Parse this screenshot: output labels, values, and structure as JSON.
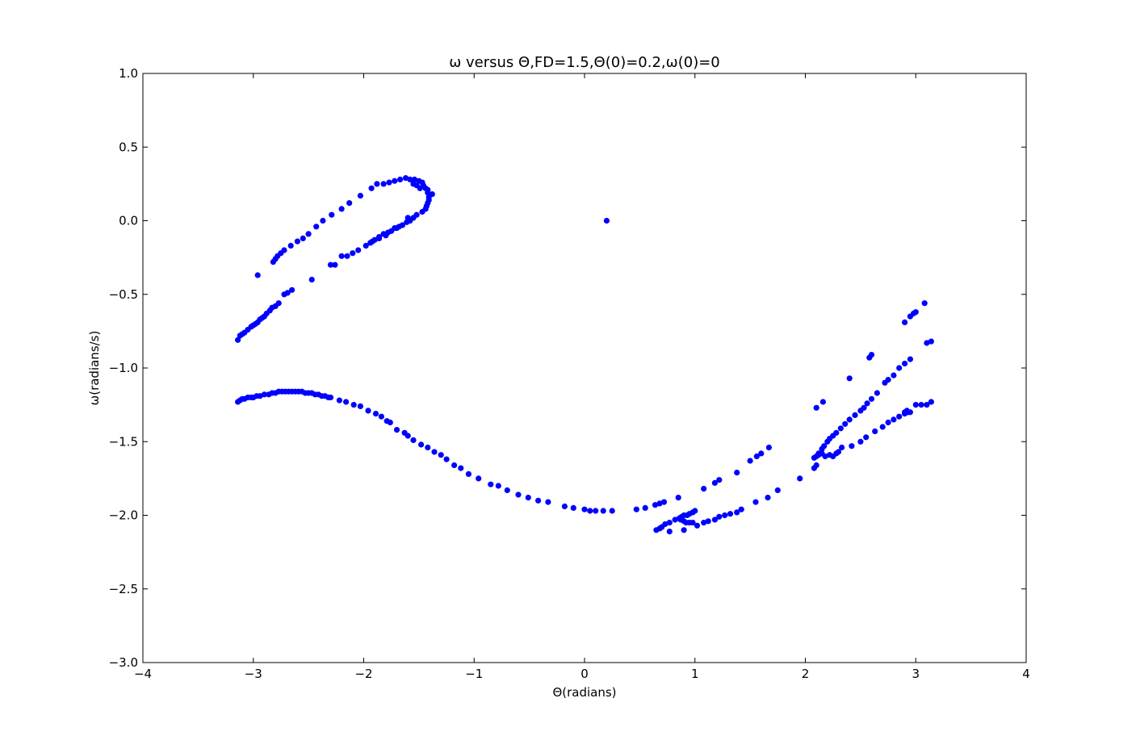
{
  "chart_data": {
    "type": "scatter",
    "title": "ω versus Θ,FD=1.5,Θ(0)=0.2,ω(0)=0",
    "xlabel": "Θ(radians)",
    "ylabel": "ω(radians/s)",
    "xlim": [
      -4,
      4
    ],
    "ylim": [
      -3,
      1
    ],
    "xticks": [
      -4,
      -3,
      -2,
      -1,
      0,
      1,
      2,
      3,
      4
    ],
    "xtick_labels": [
      "−4",
      "−3",
      "−2",
      "−1",
      "0",
      "1",
      "2",
      "3",
      "4"
    ],
    "yticks": [
      -3.0,
      -2.5,
      -2.0,
      -1.5,
      -1.0,
      -0.5,
      0.0,
      0.5,
      1.0
    ],
    "ytick_labels": [
      "−3.0",
      "−2.5",
      "−2.0",
      "−1.5",
      "−1.0",
      "−0.5",
      "0.0",
      "0.5",
      "1.0"
    ],
    "grid": false,
    "marker_color": "#0000ff",
    "series": [
      {
        "points": [
          [
            0.2,
            0.0
          ],
          [
            -3.14,
            -0.81
          ],
          [
            -3.12,
            -0.78
          ],
          [
            -3.1,
            -0.77
          ],
          [
            -3.08,
            -0.76
          ],
          [
            -3.05,
            -0.74
          ],
          [
            -3.02,
            -0.72
          ],
          [
            -3.0,
            -0.71
          ],
          [
            -2.98,
            -0.7
          ],
          [
            -2.96,
            -0.69
          ],
          [
            -2.94,
            -0.67
          ],
          [
            -2.92,
            -0.66
          ],
          [
            -2.9,
            -0.65
          ],
          [
            -2.88,
            -0.63
          ],
          [
            -2.85,
            -0.61
          ],
          [
            -2.83,
            -0.59
          ],
          [
            -2.8,
            -0.58
          ],
          [
            -2.77,
            -0.56
          ],
          [
            -2.72,
            -0.5
          ],
          [
            -2.69,
            -0.49
          ],
          [
            -2.65,
            -0.47
          ],
          [
            -2.47,
            -0.4
          ],
          [
            -2.3,
            -0.3
          ],
          [
            -2.26,
            -0.3
          ],
          [
            -2.96,
            -0.37
          ],
          [
            -2.82,
            -0.28
          ],
          [
            -2.8,
            -0.26
          ],
          [
            -2.78,
            -0.24
          ],
          [
            -2.75,
            -0.22
          ],
          [
            -2.72,
            -0.2
          ],
          [
            -2.66,
            -0.17
          ],
          [
            -2.6,
            -0.14
          ],
          [
            -2.55,
            -0.12
          ],
          [
            -2.5,
            -0.09
          ],
          [
            -2.43,
            -0.04
          ],
          [
            -2.37,
            0.0
          ],
          [
            -2.29,
            0.04
          ],
          [
            -2.2,
            0.08
          ],
          [
            -2.13,
            0.12
          ],
          [
            -2.03,
            0.17
          ],
          [
            -1.93,
            0.22
          ],
          [
            -2.2,
            -0.24
          ],
          [
            -2.15,
            -0.24
          ],
          [
            -2.1,
            -0.22
          ],
          [
            -2.05,
            -0.2
          ],
          [
            -1.98,
            -0.17
          ],
          [
            -1.94,
            -0.15
          ],
          [
            -1.9,
            -0.13
          ],
          [
            -1.86,
            -0.11
          ],
          [
            -1.82,
            -0.09
          ],
          [
            -1.78,
            -0.08
          ],
          [
            -1.75,
            -0.07
          ],
          [
            -1.72,
            -0.05
          ],
          [
            -1.68,
            -0.04
          ],
          [
            -1.65,
            -0.03
          ],
          [
            -1.61,
            -0.01
          ],
          [
            -1.58,
            0.0
          ],
          [
            -1.55,
            0.02
          ],
          [
            -1.52,
            0.04
          ],
          [
            -1.47,
            0.06
          ],
          [
            -1.44,
            0.08
          ],
          [
            -1.43,
            0.1
          ],
          [
            -1.42,
            0.12
          ],
          [
            -1.41,
            0.14
          ],
          [
            -1.41,
            0.16
          ],
          [
            -1.38,
            0.18
          ],
          [
            -1.42,
            0.19
          ],
          [
            -1.42,
            0.21
          ],
          [
            -1.44,
            0.22
          ],
          [
            -1.46,
            0.24
          ],
          [
            -1.47,
            0.26
          ],
          [
            -1.5,
            0.27
          ],
          [
            -1.54,
            0.28
          ],
          [
            -1.58,
            0.28
          ],
          [
            -1.62,
            0.29
          ],
          [
            -1.67,
            0.28
          ],
          [
            -1.72,
            0.27
          ],
          [
            -1.77,
            0.26
          ],
          [
            -1.82,
            0.25
          ],
          [
            -1.88,
            0.25
          ],
          [
            -1.92,
            -0.14
          ],
          [
            -1.86,
            -0.12
          ],
          [
            -1.8,
            -0.1
          ],
          [
            -1.7,
            -0.05
          ],
          [
            -1.6,
            0.02
          ],
          [
            -1.55,
            0.25
          ],
          [
            -1.52,
            0.24
          ],
          [
            -1.49,
            0.22
          ],
          [
            -3.14,
            -1.23
          ],
          [
            -3.12,
            -1.22
          ],
          [
            -3.1,
            -1.21
          ],
          [
            -3.08,
            -1.21
          ],
          [
            -3.05,
            -1.2
          ],
          [
            -3.02,
            -1.2
          ],
          [
            -3.0,
            -1.2
          ],
          [
            -2.97,
            -1.19
          ],
          [
            -2.94,
            -1.19
          ],
          [
            -2.9,
            -1.18
          ],
          [
            -2.86,
            -1.18
          ],
          [
            -2.83,
            -1.17
          ],
          [
            -2.8,
            -1.17
          ],
          [
            -2.77,
            -1.16
          ],
          [
            -2.74,
            -1.16
          ],
          [
            -2.71,
            -1.16
          ],
          [
            -2.68,
            -1.16
          ],
          [
            -2.65,
            -1.16
          ],
          [
            -2.62,
            -1.16
          ],
          [
            -2.59,
            -1.16
          ],
          [
            -2.56,
            -1.16
          ],
          [
            -2.53,
            -1.17
          ],
          [
            -2.5,
            -1.17
          ],
          [
            -2.47,
            -1.17
          ],
          [
            -2.44,
            -1.18
          ],
          [
            -2.41,
            -1.18
          ],
          [
            -2.38,
            -1.19
          ],
          [
            -2.35,
            -1.19
          ],
          [
            -2.32,
            -1.2
          ],
          [
            -2.3,
            -1.2
          ],
          [
            -2.22,
            -1.22
          ],
          [
            -2.16,
            -1.23
          ],
          [
            -2.09,
            -1.25
          ],
          [
            -2.03,
            -1.26
          ],
          [
            -1.96,
            -1.29
          ],
          [
            -1.89,
            -1.31
          ],
          [
            -1.84,
            -1.33
          ],
          [
            -1.79,
            -1.36
          ],
          [
            -1.76,
            -1.37
          ],
          [
            -1.7,
            -1.42
          ],
          [
            -1.63,
            -1.44
          ],
          [
            -1.6,
            -1.46
          ],
          [
            -1.55,
            -1.49
          ],
          [
            -1.48,
            -1.52
          ],
          [
            -1.42,
            -1.54
          ],
          [
            -1.36,
            -1.57
          ],
          [
            -1.3,
            -1.59
          ],
          [
            -1.25,
            -1.62
          ],
          [
            -1.18,
            -1.66
          ],
          [
            -1.12,
            -1.68
          ],
          [
            -1.05,
            -1.72
          ],
          [
            -0.96,
            -1.75
          ],
          [
            -0.85,
            -1.79
          ],
          [
            -0.78,
            -1.8
          ],
          [
            -0.7,
            -1.83
          ],
          [
            -0.6,
            -1.86
          ],
          [
            -0.51,
            -1.88
          ],
          [
            -0.42,
            -1.9
          ],
          [
            -0.33,
            -1.91
          ],
          [
            -0.18,
            -1.94
          ],
          [
            -0.1,
            -1.95
          ],
          [
            0.0,
            -1.96
          ],
          [
            0.05,
            -1.97
          ],
          [
            0.1,
            -1.97
          ],
          [
            0.17,
            -1.97
          ],
          [
            0.25,
            -1.97
          ],
          [
            0.47,
            -1.96
          ],
          [
            0.55,
            -1.95
          ],
          [
            0.64,
            -1.93
          ],
          [
            0.68,
            -1.92
          ],
          [
            0.72,
            -1.91
          ],
          [
            0.85,
            -1.88
          ],
          [
            0.65,
            -2.1
          ],
          [
            0.68,
            -2.09
          ],
          [
            0.7,
            -2.08
          ],
          [
            0.73,
            -2.06
          ],
          [
            0.77,
            -2.05
          ],
          [
            0.82,
            -2.03
          ],
          [
            0.86,
            -2.02
          ],
          [
            0.88,
            -2.01
          ],
          [
            0.9,
            -2.0
          ],
          [
            0.93,
            -2.0
          ],
          [
            0.95,
            -1.99
          ],
          [
            0.98,
            -1.98
          ],
          [
            1.0,
            -1.97
          ],
          [
            0.87,
            -2.03
          ],
          [
            0.9,
            -2.04
          ],
          [
            0.92,
            -2.05
          ],
          [
            0.95,
            -2.05
          ],
          [
            0.98,
            -2.05
          ],
          [
            0.9,
            -2.1
          ],
          [
            0.77,
            -2.11
          ],
          [
            1.02,
            -2.07
          ],
          [
            1.08,
            -2.05
          ],
          [
            1.12,
            -2.04
          ],
          [
            1.18,
            -2.03
          ],
          [
            1.22,
            -2.01
          ],
          [
            1.27,
            -2.0
          ],
          [
            1.32,
            -1.99
          ],
          [
            1.38,
            -1.98
          ],
          [
            1.42,
            -1.96
          ],
          [
            1.55,
            -1.91
          ],
          [
            1.66,
            -1.88
          ],
          [
            1.75,
            -1.83
          ],
          [
            1.95,
            -1.75
          ],
          [
            1.08,
            -1.82
          ],
          [
            1.18,
            -1.78
          ],
          [
            1.22,
            -1.76
          ],
          [
            1.38,
            -1.71
          ],
          [
            1.5,
            -1.63
          ],
          [
            1.56,
            -1.6
          ],
          [
            1.6,
            -1.58
          ],
          [
            1.67,
            -1.54
          ],
          [
            2.08,
            -1.61
          ],
          [
            2.1,
            -1.6
          ],
          [
            2.12,
            -1.59
          ],
          [
            2.15,
            -1.58
          ],
          [
            2.18,
            -1.6
          ],
          [
            2.22,
            -1.59
          ],
          [
            2.25,
            -1.6
          ],
          [
            2.28,
            -1.58
          ],
          [
            2.3,
            -1.57
          ],
          [
            2.33,
            -1.54
          ],
          [
            2.42,
            -1.53
          ],
          [
            2.5,
            -1.5
          ],
          [
            2.55,
            -1.47
          ],
          [
            2.63,
            -1.43
          ],
          [
            2.7,
            -1.4
          ],
          [
            2.75,
            -1.37
          ],
          [
            2.8,
            -1.35
          ],
          [
            2.85,
            -1.33
          ],
          [
            2.9,
            -1.31
          ],
          [
            2.95,
            -1.3
          ],
          [
            3.0,
            -1.25
          ],
          [
            3.05,
            -1.25
          ],
          [
            3.1,
            -1.25
          ],
          [
            3.14,
            -1.23
          ],
          [
            2.08,
            -1.68
          ],
          [
            2.1,
            -1.66
          ],
          [
            2.12,
            -1.58
          ],
          [
            2.15,
            -1.55
          ],
          [
            2.17,
            -1.53
          ],
          [
            2.2,
            -1.5
          ],
          [
            2.22,
            -1.48
          ],
          [
            2.25,
            -1.46
          ],
          [
            2.28,
            -1.44
          ],
          [
            2.32,
            -1.41
          ],
          [
            2.36,
            -1.38
          ],
          [
            2.4,
            -1.35
          ],
          [
            2.45,
            -1.32
          ],
          [
            2.5,
            -1.29
          ],
          [
            2.53,
            -1.27
          ],
          [
            2.56,
            -1.24
          ],
          [
            2.6,
            -1.21
          ],
          [
            2.65,
            -1.17
          ],
          [
            2.72,
            -1.1
          ],
          [
            2.75,
            -1.08
          ],
          [
            2.8,
            -1.05
          ],
          [
            2.85,
            -1.0
          ],
          [
            2.9,
            -0.97
          ],
          [
            2.95,
            -0.94
          ],
          [
            3.1,
            -0.83
          ],
          [
            3.14,
            -0.82
          ],
          [
            2.1,
            -1.27
          ],
          [
            2.16,
            -1.23
          ],
          [
            2.4,
            -1.07
          ],
          [
            2.58,
            -0.93
          ],
          [
            2.6,
            -0.91
          ],
          [
            2.9,
            -0.69
          ],
          [
            2.95,
            -0.65
          ],
          [
            2.98,
            -0.63
          ],
          [
            3.0,
            -0.62
          ],
          [
            3.08,
            -0.56
          ],
          [
            2.92,
            -1.29
          ],
          [
            2.93,
            -1.3
          ],
          [
            2.9,
            -1.3
          ]
        ]
      }
    ]
  }
}
